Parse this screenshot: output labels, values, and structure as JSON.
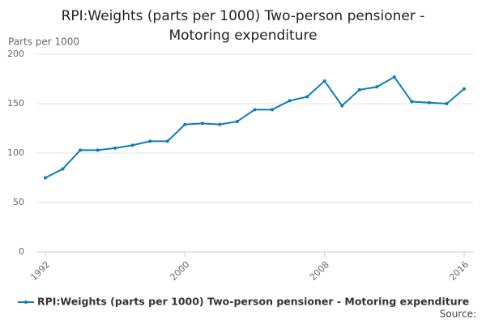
{
  "chart_data": {
    "type": "line",
    "title": "RPI:Weights (parts per 1000) Two-person pensioner - Motoring expenditure",
    "y_label": "Parts per 1000",
    "x": [
      1992,
      1993,
      1994,
      1995,
      1996,
      1997,
      1998,
      1999,
      2000,
      2001,
      2002,
      2003,
      2004,
      2005,
      2006,
      2007,
      2008,
      2009,
      2010,
      2011,
      2012,
      2013,
      2014,
      2015,
      2016
    ],
    "series": [
      {
        "name": "RPI:Weights (parts per 1000) Two-person pensioner - Motoring expenditure",
        "color": "#0f7bb5",
        "values": [
          75,
          84,
          103,
          103,
          105,
          108,
          112,
          112,
          129,
          130,
          129,
          132,
          144,
          144,
          153,
          157,
          173,
          148,
          164,
          167,
          177,
          152,
          151,
          150,
          165
        ]
      }
    ],
    "xlim": [
      1992,
      2016
    ],
    "xticks": [
      1992,
      2000,
      2008,
      2016
    ],
    "ylim": [
      0,
      200
    ],
    "yticks": [
      0,
      50,
      100,
      150,
      200
    ],
    "grid": true,
    "legend": "bottom",
    "source": "Source:"
  }
}
